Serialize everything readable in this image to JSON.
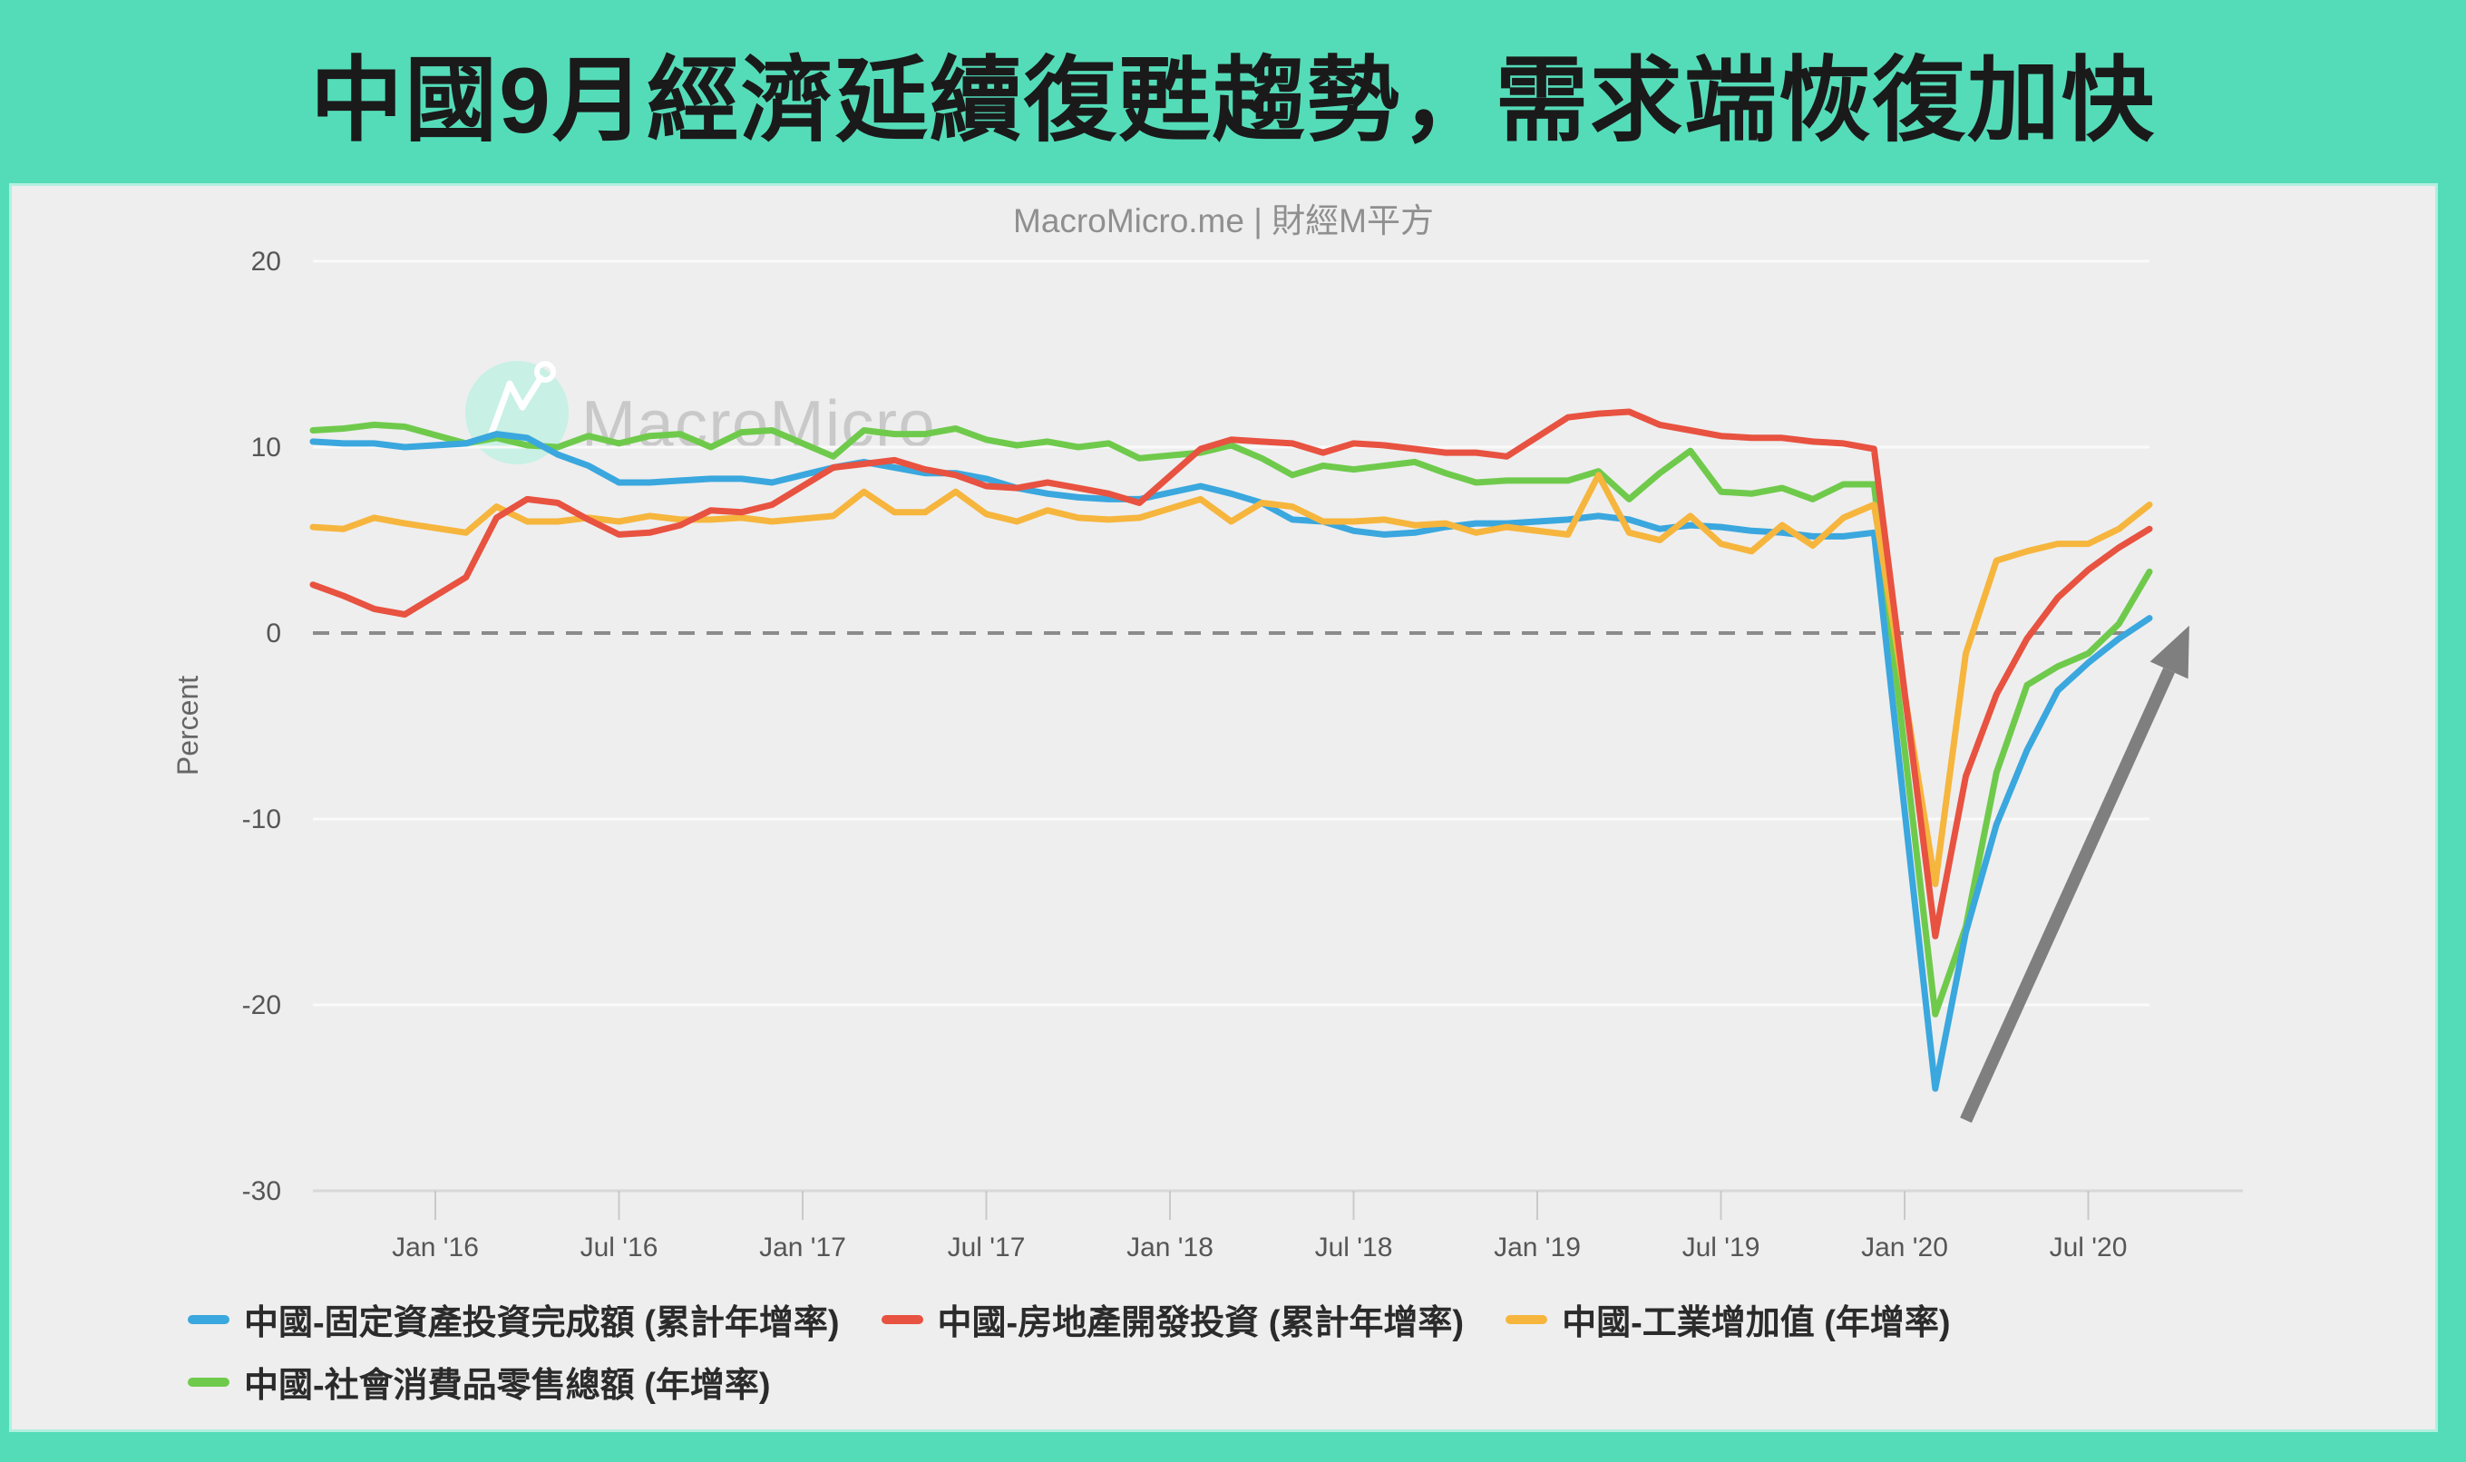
{
  "title": "中國9月經濟延續復甦趨勢，需求端恢復加快",
  "subtitle": "MacroMicro.me | 財經M平方",
  "watermark_text": "MacroMicro",
  "colors": {
    "frame_band": "#54DCB8",
    "panel_background": "#EEEEEE",
    "title_text": "#1A1A1A",
    "subtitle_text": "#8F8F8F",
    "axis_text": "#565656",
    "gridline": "#FAFAFA",
    "axis_line": "#D8D8D8",
    "tick_mark": "#C9C9C9",
    "zero_dash_line": "#8B8B8B",
    "arrow": "#7F7F7F",
    "watermark_circle": "#C3EFE2",
    "watermark_glyph": "#FFFFFF",
    "watermark_text_color": "#C9C9C9",
    "legend_text": "#2B2B2B"
  },
  "chart_data": {
    "type": "line",
    "title": "中國9月經濟延續復甦趨勢，需求端恢復加快",
    "subtitle": "MacroMicro.me | 財經M平方",
    "ylabel": "Percent",
    "ylim": [
      -30,
      20
    ],
    "yticks": [
      20,
      10,
      0,
      -10,
      -20,
      -30
    ],
    "grid": "horizontal",
    "zero_line_dashed": true,
    "legend_position": "bottom",
    "x_range": {
      "start": "2015-09",
      "end": "2020-09",
      "unit": "month_index_from_start"
    },
    "xticks": [
      {
        "label": "Jan '16",
        "m": 4
      },
      {
        "label": "Jul '16",
        "m": 10
      },
      {
        "label": "Jan '17",
        "m": 16
      },
      {
        "label": "Jul '17",
        "m": 22
      },
      {
        "label": "Jan '18",
        "m": 28
      },
      {
        "label": "Jul '18",
        "m": 34
      },
      {
        "label": "Jan '19",
        "m": 40
      },
      {
        "label": "Jul '19",
        "m": 46
      },
      {
        "label": "Jan '20",
        "m": 52
      },
      {
        "label": "Jul '20",
        "m": 58
      }
    ],
    "series": [
      {
        "name": "中國-固定資產投資完成額 (累計年增率)",
        "color": "#3AA7DE",
        "points": [
          [
            0,
            10.3
          ],
          [
            1,
            10.2
          ],
          [
            2,
            10.2
          ],
          [
            3,
            10.0
          ],
          [
            5,
            10.2
          ],
          [
            6,
            10.7
          ],
          [
            7,
            10.5
          ],
          [
            8,
            9.6
          ],
          [
            9,
            9.0
          ],
          [
            10,
            8.1
          ],
          [
            11,
            8.1
          ],
          [
            12,
            8.2
          ],
          [
            13,
            8.3
          ],
          [
            14,
            8.3
          ],
          [
            15,
            8.1
          ],
          [
            17,
            8.9
          ],
          [
            18,
            9.2
          ],
          [
            19,
            8.9
          ],
          [
            20,
            8.6
          ],
          [
            21,
            8.6
          ],
          [
            22,
            8.3
          ],
          [
            23,
            7.8
          ],
          [
            24,
            7.5
          ],
          [
            25,
            7.3
          ],
          [
            26,
            7.2
          ],
          [
            27,
            7.2
          ],
          [
            29,
            7.9
          ],
          [
            30,
            7.5
          ],
          [
            31,
            7.0
          ],
          [
            32,
            6.1
          ],
          [
            33,
            6.0
          ],
          [
            34,
            5.5
          ],
          [
            35,
            5.3
          ],
          [
            36,
            5.4
          ],
          [
            37,
            5.7
          ],
          [
            38,
            5.9
          ],
          [
            39,
            5.9
          ],
          [
            41,
            6.1
          ],
          [
            42,
            6.3
          ],
          [
            43,
            6.1
          ],
          [
            44,
            5.6
          ],
          [
            45,
            5.8
          ],
          [
            46,
            5.7
          ],
          [
            47,
            5.5
          ],
          [
            48,
            5.4
          ],
          [
            49,
            5.2
          ],
          [
            50,
            5.2
          ],
          [
            51,
            5.4
          ],
          [
            53,
            -24.5
          ],
          [
            54,
            -16.1
          ],
          [
            55,
            -10.3
          ],
          [
            56,
            -6.3
          ],
          [
            57,
            -3.1
          ],
          [
            58,
            -1.6
          ],
          [
            59,
            -0.3
          ],
          [
            60,
            0.8
          ]
        ]
      },
      {
        "name": "中國-房地產開發投資 (累計年增率)",
        "color": "#E85240",
        "points": [
          [
            0,
            2.6
          ],
          [
            1,
            2.0
          ],
          [
            2,
            1.3
          ],
          [
            3,
            1.0
          ],
          [
            5,
            3.0
          ],
          [
            6,
            6.2
          ],
          [
            7,
            7.2
          ],
          [
            8,
            7.0
          ],
          [
            9,
            6.1
          ],
          [
            10,
            5.3
          ],
          [
            11,
            5.4
          ],
          [
            12,
            5.8
          ],
          [
            13,
            6.6
          ],
          [
            14,
            6.5
          ],
          [
            15,
            6.9
          ],
          [
            17,
            8.9
          ],
          [
            18,
            9.1
          ],
          [
            19,
            9.3
          ],
          [
            20,
            8.8
          ],
          [
            21,
            8.5
          ],
          [
            22,
            7.9
          ],
          [
            23,
            7.8
          ],
          [
            24,
            8.1
          ],
          [
            25,
            7.8
          ],
          [
            26,
            7.5
          ],
          [
            27,
            7.0
          ],
          [
            29,
            9.9
          ],
          [
            30,
            10.4
          ],
          [
            31,
            10.3
          ],
          [
            32,
            10.2
          ],
          [
            33,
            9.7
          ],
          [
            34,
            10.2
          ],
          [
            35,
            10.1
          ],
          [
            36,
            9.9
          ],
          [
            37,
            9.7
          ],
          [
            38,
            9.7
          ],
          [
            39,
            9.5
          ],
          [
            41,
            11.6
          ],
          [
            42,
            11.8
          ],
          [
            43,
            11.9
          ],
          [
            44,
            11.2
          ],
          [
            45,
            10.9
          ],
          [
            46,
            10.6
          ],
          [
            47,
            10.5
          ],
          [
            48,
            10.5
          ],
          [
            49,
            10.3
          ],
          [
            50,
            10.2
          ],
          [
            51,
            9.9
          ],
          [
            53,
            -16.3
          ],
          [
            54,
            -7.7
          ],
          [
            55,
            -3.3
          ],
          [
            56,
            -0.3
          ],
          [
            57,
            1.9
          ],
          [
            58,
            3.4
          ],
          [
            59,
            4.6
          ],
          [
            60,
            5.6
          ]
        ]
      },
      {
        "name": "中國-工業增加值 (年增率)",
        "color": "#F6B53D",
        "points": [
          [
            0,
            5.7
          ],
          [
            1,
            5.6
          ],
          [
            2,
            6.2
          ],
          [
            3,
            5.9
          ],
          [
            5,
            5.4
          ],
          [
            6,
            6.8
          ],
          [
            7,
            6.0
          ],
          [
            8,
            6.0
          ],
          [
            9,
            6.2
          ],
          [
            10,
            6.0
          ],
          [
            11,
            6.3
          ],
          [
            12,
            6.1
          ],
          [
            13,
            6.1
          ],
          [
            14,
            6.2
          ],
          [
            15,
            6.0
          ],
          [
            17,
            6.3
          ],
          [
            18,
            7.6
          ],
          [
            19,
            6.5
          ],
          [
            20,
            6.5
          ],
          [
            21,
            7.6
          ],
          [
            22,
            6.4
          ],
          [
            23,
            6.0
          ],
          [
            24,
            6.6
          ],
          [
            25,
            6.2
          ],
          [
            26,
            6.1
          ],
          [
            27,
            6.2
          ],
          [
            29,
            7.2
          ],
          [
            30,
            6.0
          ],
          [
            31,
            7.0
          ],
          [
            32,
            6.8
          ],
          [
            33,
            6.0
          ],
          [
            34,
            6.0
          ],
          [
            35,
            6.1
          ],
          [
            36,
            5.8
          ],
          [
            37,
            5.9
          ],
          [
            38,
            5.4
          ],
          [
            39,
            5.7
          ],
          [
            41,
            5.3
          ],
          [
            42,
            8.5
          ],
          [
            43,
            5.4
          ],
          [
            44,
            5.0
          ],
          [
            45,
            6.3
          ],
          [
            46,
            4.8
          ],
          [
            47,
            4.4
          ],
          [
            48,
            5.8
          ],
          [
            49,
            4.7
          ],
          [
            50,
            6.2
          ],
          [
            51,
            6.9
          ],
          [
            53,
            -13.5
          ],
          [
            54,
            -1.1
          ],
          [
            55,
            3.9
          ],
          [
            56,
            4.4
          ],
          [
            57,
            4.8
          ],
          [
            58,
            4.8
          ],
          [
            59,
            5.6
          ],
          [
            60,
            6.9
          ]
        ]
      },
      {
        "name": "中國-社會消費品零售總額 (年增率)",
        "color": "#6FCA4C",
        "points": [
          [
            0,
            10.9
          ],
          [
            1,
            11.0
          ],
          [
            2,
            11.2
          ],
          [
            3,
            11.1
          ],
          [
            5,
            10.2
          ],
          [
            6,
            10.5
          ],
          [
            7,
            10.1
          ],
          [
            8,
            10.0
          ],
          [
            9,
            10.6
          ],
          [
            10,
            10.2
          ],
          [
            11,
            10.6
          ],
          [
            12,
            10.7
          ],
          [
            13,
            10.0
          ],
          [
            14,
            10.8
          ],
          [
            15,
            10.9
          ],
          [
            17,
            9.5
          ],
          [
            18,
            10.9
          ],
          [
            19,
            10.7
          ],
          [
            20,
            10.7
          ],
          [
            21,
            11.0
          ],
          [
            22,
            10.4
          ],
          [
            23,
            10.1
          ],
          [
            24,
            10.3
          ],
          [
            25,
            10.0
          ],
          [
            26,
            10.2
          ],
          [
            27,
            9.4
          ],
          [
            29,
            9.7
          ],
          [
            30,
            10.1
          ],
          [
            31,
            9.4
          ],
          [
            32,
            8.5
          ],
          [
            33,
            9.0
          ],
          [
            34,
            8.8
          ],
          [
            35,
            9.0
          ],
          [
            36,
            9.2
          ],
          [
            37,
            8.6
          ],
          [
            38,
            8.1
          ],
          [
            39,
            8.2
          ],
          [
            41,
            8.2
          ],
          [
            42,
            8.7
          ],
          [
            43,
            7.2
          ],
          [
            44,
            8.6
          ],
          [
            45,
            9.8
          ],
          [
            46,
            7.6
          ],
          [
            47,
            7.5
          ],
          [
            48,
            7.8
          ],
          [
            49,
            7.2
          ],
          [
            50,
            8.0
          ],
          [
            51,
            8.0
          ],
          [
            53,
            -20.5
          ],
          [
            54,
            -15.8
          ],
          [
            55,
            -7.5
          ],
          [
            56,
            -2.8
          ],
          [
            57,
            -1.8
          ],
          [
            58,
            -1.1
          ],
          [
            59,
            0.5
          ],
          [
            60,
            3.3
          ]
        ]
      }
    ],
    "annotation_arrow": {
      "from": {
        "m": 54.0,
        "value": -26.2
      },
      "to": {
        "m": 61.3,
        "value": 0.4
      }
    }
  },
  "legend": {
    "rows": [
      [
        0,
        1,
        2
      ],
      [
        3
      ]
    ]
  }
}
